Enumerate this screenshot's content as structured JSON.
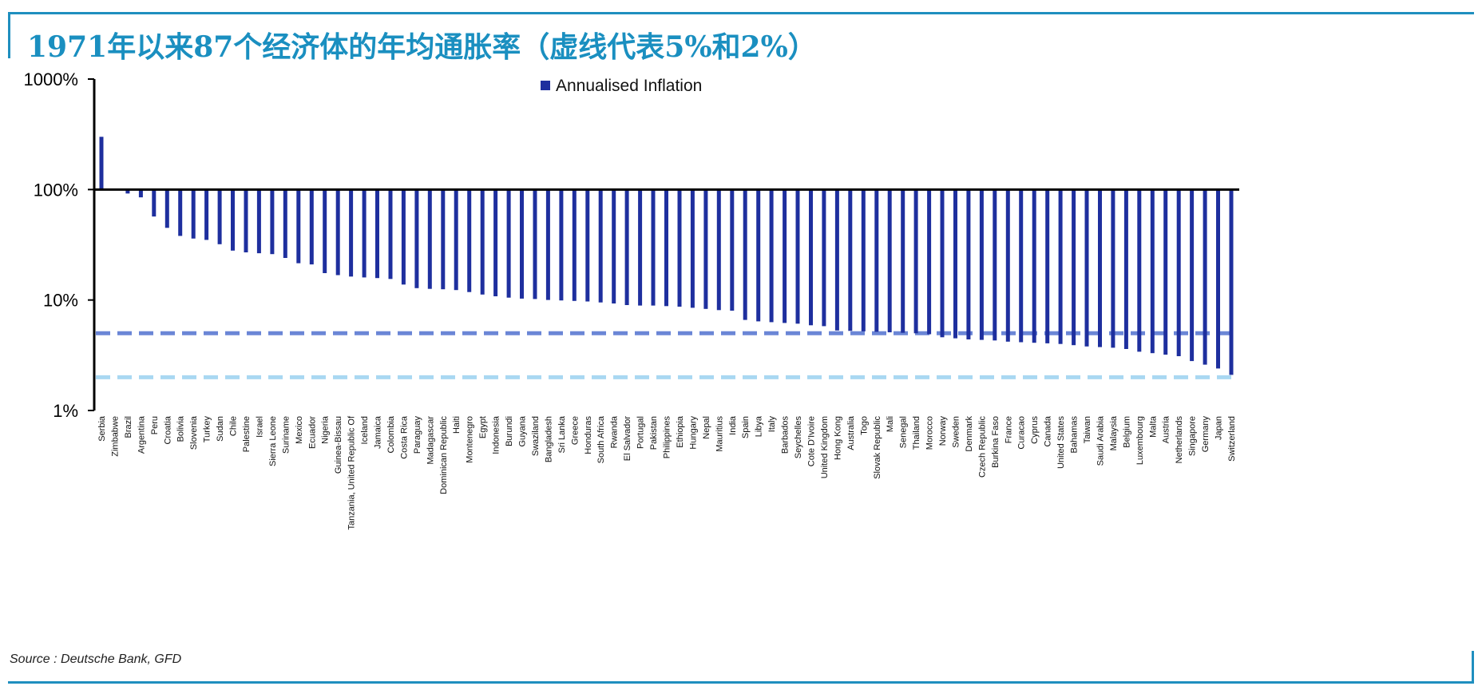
{
  "title": "1971年以来87个经济体的年均通胀率（虚线代表5%和2%）",
  "source": "Source : Deutsche Bank, GFD",
  "colors": {
    "frame": "#1f8fbf",
    "title": "#1a8fc0",
    "bar": "#1e2f9e",
    "ref_line_5": "#6b86d6",
    "ref_line_2": "#a9d8f2"
  },
  "chart_data": {
    "type": "bar",
    "title": "",
    "xlabel": "",
    "ylabel": "",
    "y_scale": "log",
    "ylim": [
      1,
      1000
    ],
    "baseline": 100,
    "y_ticks": [
      1,
      10,
      100,
      1000
    ],
    "y_tick_labels": [
      "1%",
      "10%",
      "100%",
      "1000%"
    ],
    "grid": false,
    "legend": {
      "position": "top-center",
      "entries": [
        "Annualised Inflation"
      ]
    },
    "reference_lines": [
      {
        "value": 5,
        "style": "dashed"
      },
      {
        "value": 2,
        "style": "dashed"
      }
    ],
    "categories": [
      "Serbia",
      "Zimbabwe",
      "Brazil",
      "Argentina",
      "Peru",
      "Croatia",
      "Bolivia",
      "Slovenia",
      "Turkey",
      "Sudan",
      "Chile",
      "Palestine",
      "Israel",
      "Sierra Leone",
      "Suriname",
      "Mexico",
      "Ecuador",
      "Nigeria",
      "Guinea-Bissau",
      "Tanzania, United Republic Of",
      "Iceland",
      "Jamaica",
      "Colombia",
      "Costa Rica",
      "Paraguay",
      "Madagascar",
      "Dominican Republic",
      "Haiti",
      "Montenegro",
      "Egypt",
      "Indonesia",
      "Burundi",
      "Guyana",
      "Swaziland",
      "Bangladesh",
      "Sri Lanka",
      "Greece",
      "Honduras",
      "South Africa",
      "Rwanda",
      "El Salvador",
      "Portugal",
      "Pakistan",
      "Philippines",
      "Ethiopia",
      "Hungary",
      "Nepal",
      "Mauritius",
      "India",
      "Spain",
      "Libya",
      "Italy",
      "Barbados",
      "Seychelles",
      "Cote D'Ivoire",
      "United Kingdom",
      "Hong Kong",
      "Australia",
      "Togo",
      "Slovak Republic",
      "Mali",
      "Senegal",
      "Thailand",
      "Morocco",
      "Norway",
      "Sweden",
      "Denmark",
      "Czech Republic",
      "Burkina Faso",
      "France",
      "Curacao",
      "Cyprus",
      "Canada",
      "United States",
      "Bahamas",
      "Taiwan",
      "Saudi Arabia",
      "Malaysia",
      "Belgium",
      "Luxembourg",
      "Malta",
      "Austria",
      "Netherlands",
      "Singapore",
      "Germany",
      "Japan",
      "Switzerland"
    ],
    "series": [
      {
        "name": "Annualised Inflation",
        "values": [
          300,
          102,
          92,
          85,
          57,
          45,
          38,
          36,
          35,
          32,
          28,
          27,
          26.5,
          26,
          24,
          21.5,
          21,
          17.5,
          16.8,
          16.3,
          16,
          15.8,
          15.5,
          13.8,
          12.8,
          12.6,
          12.5,
          12.3,
          11.8,
          11.2,
          10.8,
          10.5,
          10.3,
          10.2,
          10,
          9.9,
          9.8,
          9.7,
          9.5,
          9.3,
          9,
          8.9,
          8.9,
          8.8,
          8.7,
          8.5,
          8.3,
          8.1,
          8,
          6.6,
          6.4,
          6.3,
          6.2,
          6.1,
          5.9,
          5.8,
          5.3,
          5.25,
          5.2,
          5.15,
          5.1,
          5.05,
          5,
          4.9,
          4.6,
          4.5,
          4.4,
          4.35,
          4.3,
          4.2,
          4.15,
          4.1,
          4.05,
          4,
          3.9,
          3.8,
          3.75,
          3.7,
          3.6,
          3.4,
          3.3,
          3.2,
          3.1,
          2.8,
          2.6,
          2.4,
          2.1
        ]
      }
    ]
  }
}
